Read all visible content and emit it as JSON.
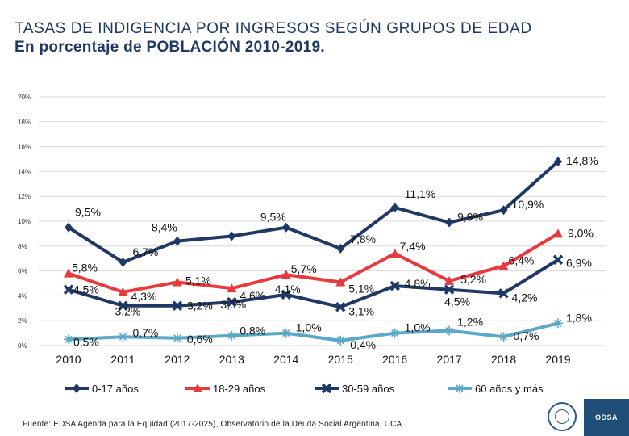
{
  "header": {
    "title_line1": "TASAS DE INDIGENCIA POR INGRESOS SEGÚN GRUPOS DE EDAD",
    "title_line2": "En porcentaje de POBLACIÓN 2010-2019."
  },
  "chart_data": {
    "type": "line",
    "title": "TASAS DE INDIGENCIA POR INGRESOS SEGÚN GRUPOS DE EDAD",
    "subtitle": "En porcentaje de POBLACIÓN 2010-2019.",
    "xlabel": "",
    "ylabel": "",
    "ylim": [
      0,
      20
    ],
    "y_ticks": [
      0,
      2,
      4,
      6,
      8,
      10,
      12,
      14,
      16,
      18,
      20
    ],
    "y_tick_labels": [
      "0%",
      "2%",
      "4%",
      "6%",
      "8%",
      "10%",
      "12%",
      "14%",
      "16%",
      "18%",
      "20%"
    ],
    "grid": true,
    "legend_position": "bottom",
    "categories": [
      "2010",
      "2011",
      "2012",
      "2013",
      "2014",
      "2015",
      "2016",
      "2017",
      "2018",
      "2019"
    ],
    "series": [
      {
        "name": "0-17 años",
        "color": "#1f3864",
        "marker": "diamond",
        "values": [
          9.5,
          6.7,
          8.4,
          8.8,
          9.5,
          7.8,
          11.1,
          9.9,
          10.9,
          14.8
        ],
        "labels": [
          "9,5%",
          "6,7%",
          "8,4%",
          "",
          "9,5%",
          "7,8%",
          "11,1%",
          "9,9%",
          "10,9%",
          "14,8%"
        ]
      },
      {
        "name": "18-29 años",
        "color": "#e8393e",
        "marker": "triangle",
        "values": [
          5.8,
          4.3,
          5.1,
          4.6,
          5.7,
          5.1,
          7.4,
          5.2,
          6.4,
          9.0
        ],
        "labels": [
          "5,8%",
          "4,3%",
          "5,1%",
          "4,6%",
          "5,7%",
          "5,1%",
          "7,4%",
          "5,2%",
          "6,4%",
          "9,0%"
        ]
      },
      {
        "name": "30-59 años",
        "color": "#1f3864",
        "marker": "x",
        "values": [
          4.5,
          3.2,
          3.2,
          3.5,
          4.1,
          3.1,
          4.8,
          4.5,
          4.2,
          6.9
        ],
        "labels": [
          "4,5%",
          "3,2%",
          "3,2%",
          "3,5%",
          "4,1%",
          "3,1%",
          "4,8%",
          "4,5%",
          "4,2%",
          "6,9%"
        ]
      },
      {
        "name": "60 años y más",
        "color": "#5ba8c8",
        "marker": "asterisk",
        "values": [
          0.5,
          0.7,
          0.6,
          0.8,
          1.0,
          0.4,
          1.0,
          1.2,
          0.7,
          1.8
        ],
        "labels": [
          "0,5%",
          "0,7%",
          "0,6%",
          "0,8%",
          "1,0%",
          "0,4%",
          "1,0%",
          "1,2%",
          "0,7%",
          "1,8%"
        ]
      }
    ]
  },
  "footer": {
    "source": "Fuente: EDSA Agenda para la Equidad (2017-2025), Observatorio de la Deuda Social Argentina, UCA.",
    "logo_text": "ODSA"
  }
}
